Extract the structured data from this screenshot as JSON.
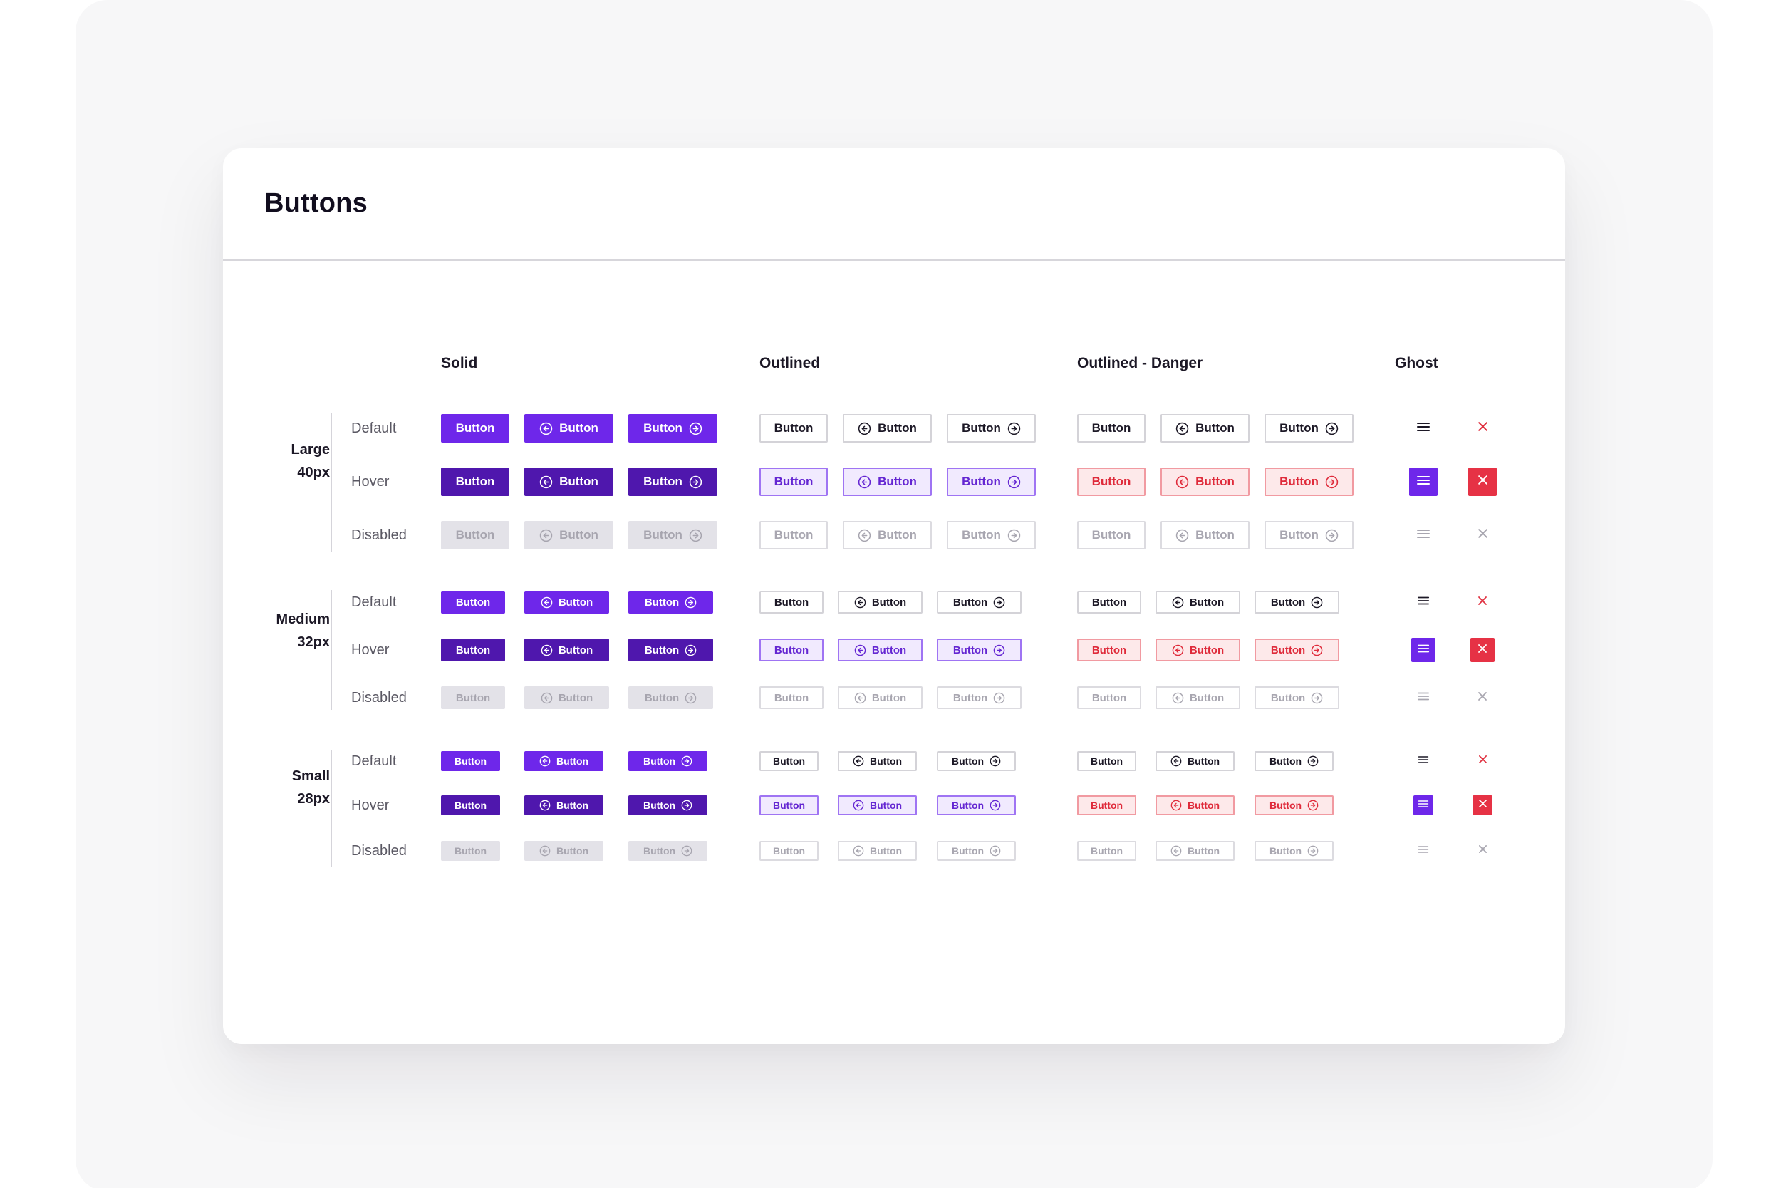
{
  "page": {
    "title": "Buttons"
  },
  "columns": [
    "Solid",
    "Outlined",
    "Outlined - Danger",
    "Ghost"
  ],
  "sizes": [
    {
      "key": "L",
      "name": "Large",
      "dim": "40px"
    },
    {
      "key": "M",
      "name": "Medium",
      "dim": "32px"
    },
    {
      "key": "S",
      "name": "Small",
      "dim": "28px"
    }
  ],
  "states": [
    "Default",
    "Hover",
    "Disabled"
  ],
  "button_label": "Button",
  "button_variants": [
    "label-only",
    "icon-left",
    "icon-right"
  ],
  "icons": {
    "left": "arrow-left-circle-icon",
    "right": "arrow-right-circle-icon",
    "menu": "menu-icon",
    "close": "close-icon"
  },
  "colors": {
    "primary": "#6e27ea",
    "primary_hover": "#4f17ad",
    "disabled_bg": "#e3e2e8",
    "danger": "#e0303f",
    "outline_hover_bg": "#f1eafe",
    "danger_hover_bg": "#fde9ea"
  }
}
